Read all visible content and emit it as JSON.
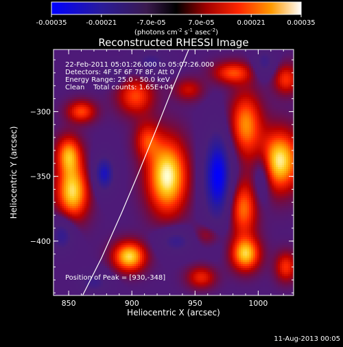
{
  "chart_data": {
    "type": "heatmap",
    "title": "Reconstructed RHESSI Image",
    "xlabel": "Heliocentric X (arcsec)",
    "ylabel": "Heliocentric Y (arcsec)",
    "xlim": [
      838,
      1028
    ],
    "ylim": [
      -442,
      -252
    ],
    "x_ticks": [
      850,
      900,
      950,
      1000
    ],
    "y_ticks": [
      -300,
      -350,
      -400
    ],
    "colorbar": {
      "min": -0.00035,
      "max": 0.00035,
      "tick_values": [
        -0.00035,
        -0.00021,
        -7e-05,
        7e-05,
        0.00021,
        0.00035
      ],
      "tick_labels": [
        "-0.00035",
        "-0.00021",
        "-7.0e-05",
        "7.0e-05",
        "0.00021",
        "0.00035"
      ],
      "units_text": "(photons cm",
      "units_exp1": "-2",
      "units_mid": " s",
      "units_exp2": "-1",
      "units_end": " asec",
      "units_exp3": "-2",
      "units_close": ")"
    },
    "annotations": [
      "22-Feb-2011 05:01:26.000 to 05:07:26.000",
      "Detectors: 4F 5F 6F 7F 8F, Att 0",
      "Energy Range: 25.0 - 50.0 keV",
      "Clean    Total counts: 1.65E+04"
    ],
    "peak_label": "Position of Peak = [930,-348]",
    "peak": {
      "x": 930,
      "y": -348
    },
    "limb_points": [
      [
        861,
        -442
      ],
      [
        876,
        -413
      ],
      [
        892,
        -378
      ],
      [
        905,
        -348
      ],
      [
        920,
        -312
      ],
      [
        933,
        -280
      ],
      [
        945,
        -252
      ]
    ],
    "blobs": [
      {
        "x": 928,
        "y": -350,
        "sx": 11,
        "sy": 20,
        "a": 1.0
      },
      {
        "x": 853,
        "y": -362,
        "sx": 9,
        "sy": 15,
        "a": 0.9
      },
      {
        "x": 850,
        "y": -333,
        "sx": 7,
        "sy": 10,
        "a": 0.7
      },
      {
        "x": 860,
        "y": -300,
        "sx": 8,
        "sy": 6,
        "a": 0.55
      },
      {
        "x": 903,
        "y": -288,
        "sx": 10,
        "sy": 10,
        "a": 0.55
      },
      {
        "x": 912,
        "y": -322,
        "sx": 7,
        "sy": 10,
        "a": 0.45
      },
      {
        "x": 1017,
        "y": -338,
        "sx": 11,
        "sy": 16,
        "a": 0.95
      },
      {
        "x": 990,
        "y": -310,
        "sx": 9,
        "sy": 17,
        "a": 0.7
      },
      {
        "x": 988,
        "y": -375,
        "sx": 8,
        "sy": 15,
        "a": 0.65
      },
      {
        "x": 980,
        "y": -270,
        "sx": 11,
        "sy": 6,
        "a": 0.55
      },
      {
        "x": 990,
        "y": -410,
        "sx": 8,
        "sy": 9,
        "a": 0.85
      },
      {
        "x": 1022,
        "y": -275,
        "sx": 7,
        "sy": 8,
        "a": 0.5
      },
      {
        "x": 1022,
        "y": -420,
        "sx": 6,
        "sy": 8,
        "a": 0.5
      },
      {
        "x": 898,
        "y": -412,
        "sx": 9,
        "sy": 8,
        "a": 0.9
      },
      {
        "x": 955,
        "y": -428,
        "sx": 8,
        "sy": 6,
        "a": 0.45
      },
      {
        "x": 960,
        "y": -395,
        "sx": 8,
        "sy": 6,
        "a": 0.3
      },
      {
        "x": 945,
        "y": -283,
        "sx": 8,
        "sy": 6,
        "a": 0.35
      },
      {
        "x": 968,
        "y": -350,
        "sx": 8,
        "sy": 24,
        "a": -1.0
      },
      {
        "x": 878,
        "y": -348,
        "sx": 6,
        "sy": 10,
        "a": -0.75
      },
      {
        "x": 915,
        "y": -262,
        "sx": 10,
        "sy": 7,
        "a": -0.45
      },
      {
        "x": 845,
        "y": -395,
        "sx": 7,
        "sy": 10,
        "a": -0.55
      },
      {
        "x": 935,
        "y": -400,
        "sx": 10,
        "sy": 7,
        "a": -0.5
      },
      {
        "x": 1005,
        "y": -262,
        "sx": 6,
        "sy": 8,
        "a": -0.45
      },
      {
        "x": 1003,
        "y": -350,
        "sx": 5,
        "sy": 14,
        "a": -0.4
      },
      {
        "x": 870,
        "y": -432,
        "sx": 9,
        "sy": 6,
        "a": -0.45
      },
      {
        "x": 885,
        "y": -270,
        "sx": 7,
        "sy": 6,
        "a": -0.35
      }
    ]
  },
  "footer": {
    "timestamp": "11-Aug-2013 00:05"
  }
}
